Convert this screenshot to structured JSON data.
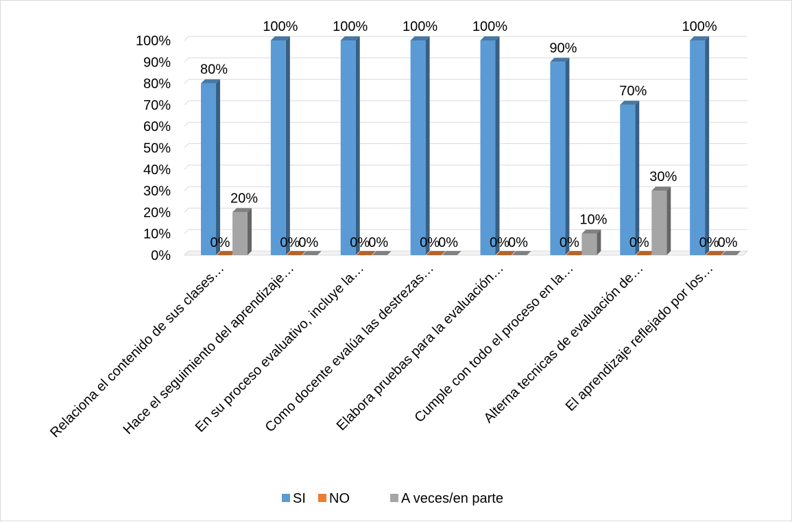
{
  "chart_data": {
    "type": "bar",
    "style": "3d-clustered-column",
    "categories": [
      "Relaciona el contenido de sus clases…",
      "Hace el seguimiento del aprendizaje…",
      "En su proceso evaluativo, incluye la…",
      "Como docente evalúa las destrezas…",
      "Elabora pruebas para la evaluación…",
      "Cumple con todo el proceso en la…",
      "Alterna tecnicas de evaluación de…",
      "El aprendizaje reflejado por los…"
    ],
    "series": [
      {
        "name": "SI",
        "color": "#5b9bd5",
        "values": [
          80,
          100,
          100,
          100,
          100,
          90,
          70,
          100
        ],
        "labels": [
          "80%",
          "100%",
          "100%",
          "100%",
          "100%",
          "90%",
          "70%",
          "100%"
        ]
      },
      {
        "name": "NO",
        "color": "#ed7d31",
        "values": [
          0,
          0,
          0,
          0,
          0,
          0,
          0,
          0
        ],
        "labels": [
          "0%",
          "0%",
          "0%",
          "0%",
          "0%",
          "0%",
          "0%",
          "0%"
        ]
      },
      {
        "name": "A veces/en parte",
        "color": "#a5a5a5",
        "values": [
          20,
          0,
          0,
          0,
          0,
          10,
          30,
          0
        ],
        "labels": [
          "20%",
          "0%",
          "0%",
          "0%",
          "0%",
          "10%",
          "30%",
          "0%"
        ]
      }
    ],
    "yticks": [
      "0%",
      "10%",
      "20%",
      "30%",
      "40%",
      "50%",
      "60%",
      "70%",
      "80%",
      "90%",
      "100%"
    ],
    "ylim": [
      0,
      100
    ],
    "grid": true,
    "legend_position": "bottom"
  }
}
